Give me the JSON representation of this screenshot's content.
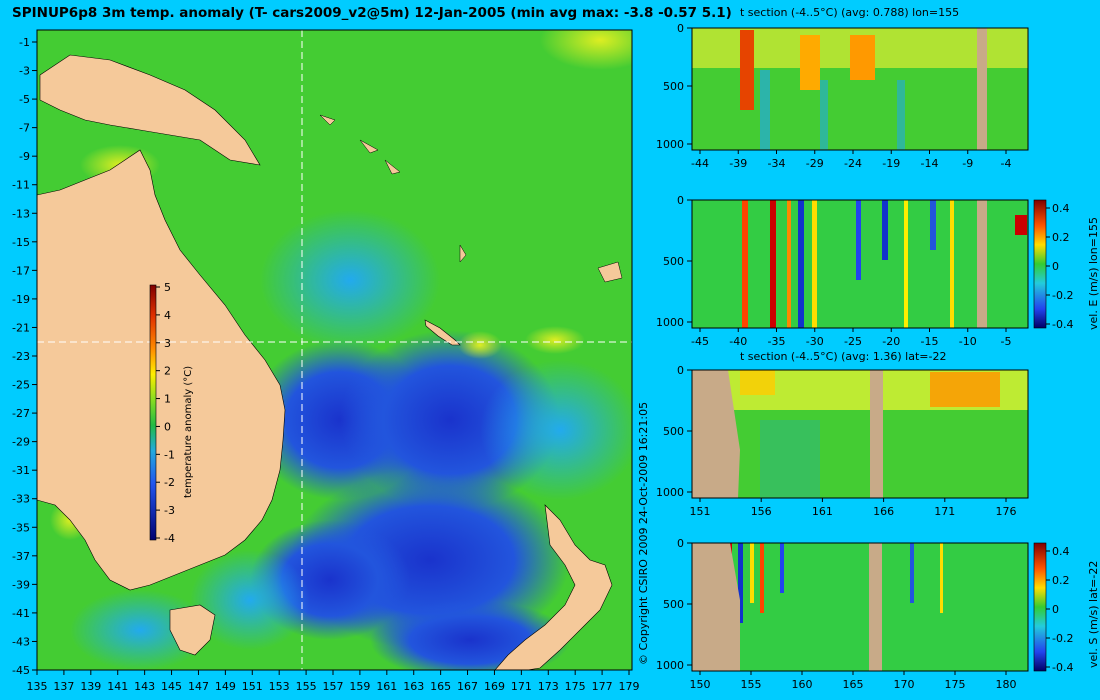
{
  "title": "SPINUP6p8 3m temp. anomaly (T- cars2009_v2@5m) 12-Jan-2005 (min avg max: -3.8 -0.57 5.1)",
  "copyright": "© Copyright CSIRO 2009   24-Oct-2009 16:21:05",
  "map": {
    "x_ticks": [
      "135",
      "137",
      "139",
      "141",
      "143",
      "145",
      "147",
      "149",
      "151",
      "153",
      "155",
      "157",
      "159",
      "161",
      "163",
      "165",
      "167",
      "169",
      "171",
      "173",
      "175",
      "177",
      "179"
    ],
    "y_ticks": [
      "-1",
      "-3",
      "-5",
      "-7",
      "-9",
      "-11",
      "-13",
      "-15",
      "-17",
      "-19",
      "-21",
      "-23",
      "-25",
      "-27",
      "-29",
      "-31",
      "-33",
      "-35",
      "-37",
      "-39",
      "-41",
      "-43",
      "-45"
    ],
    "colorbar": {
      "label": "temperature anomaly (°C)",
      "ticks": [
        "5",
        "4",
        "3",
        "2",
        "1",
        "0",
        "-1",
        "-2",
        "-3",
        "-4"
      ]
    },
    "crosshair": {
      "lon": 155,
      "lat": -22
    }
  },
  "panels": [
    {
      "title": "t section (-4..5°C) (avg: 0.788) lon=155",
      "y_ticks": [
        "0",
        "500",
        "1000"
      ],
      "x_ticks": [
        "-44",
        "-39",
        "-34",
        "-29",
        "-24",
        "-19",
        "-14",
        "-9",
        "-4"
      ],
      "side_label": "",
      "colorbar_ticks": []
    },
    {
      "title": "",
      "y_ticks": [
        "0",
        "500",
        "1000"
      ],
      "x_ticks": [
        "-45",
        "-40",
        "-35",
        "-30",
        "-25",
        "-20",
        "-15",
        "-10",
        "-5"
      ],
      "side_label": "vel. E (m/s) lon=155",
      "colorbar_ticks": [
        "0.4",
        "0.2",
        "0",
        "-0.2",
        "-0.4"
      ]
    },
    {
      "title": "t section (-4..5°C) (avg: 1.36) lat=-22",
      "y_ticks": [
        "0",
        "500",
        "1000"
      ],
      "x_ticks": [
        "151",
        "156",
        "161",
        "166",
        "171",
        "176"
      ],
      "side_label": "",
      "colorbar_ticks": []
    },
    {
      "title": "",
      "y_ticks": [
        "0",
        "500",
        "1000"
      ],
      "x_ticks": [
        "150",
        "155",
        "160",
        "165",
        "170",
        "175",
        "180"
      ],
      "side_label": "vel. S (m/s) lat=-22",
      "colorbar_ticks": [
        "0.4",
        "0.2",
        "0",
        "-0.2",
        "-0.4"
      ]
    }
  ],
  "colors": {
    "background": "#00ccff",
    "land": "#f5c99a",
    "bathy_land": "#c8aa88",
    "ocean_green": "#44cc33"
  }
}
